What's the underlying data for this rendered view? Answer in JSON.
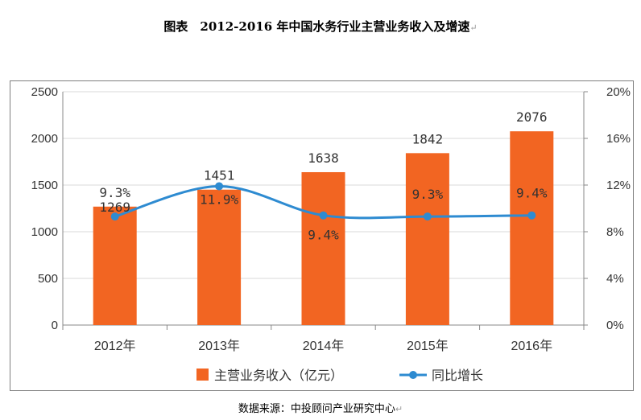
{
  "figure": {
    "title": "图表　2012-2016 年中国水务行业主营业务收入及增速",
    "source": "数据来源：中投顾问产业研究中心",
    "para_mark": "↵"
  },
  "colors": {
    "bar": "#f26522",
    "line": "#2e8bd1",
    "axis": "#888888",
    "grid": "#d9d9d9",
    "text": "#333333"
  },
  "chart_data": {
    "type": "bar",
    "categories": [
      "2012年",
      "2013年",
      "2014年",
      "2015年",
      "2016年"
    ],
    "series": [
      {
        "name": "主营业务收入（亿元）",
        "type": "bar",
        "axis": "left",
        "values": [
          1269,
          1451,
          1638,
          1842,
          2076
        ],
        "labels": [
          "1269",
          "1451",
          "1638",
          "1842",
          "2076"
        ]
      },
      {
        "name": "同比增长",
        "type": "line",
        "axis": "right",
        "values": [
          9.3,
          11.9,
          9.4,
          9.3,
          9.4
        ],
        "labels": [
          "9.3%",
          "11.9%",
          "9.4%",
          "9.3%",
          "9.4%"
        ]
      }
    ],
    "y_left": {
      "min": 0,
      "max": 2500,
      "ticks": [
        "0",
        "500",
        "1000",
        "1500",
        "2000",
        "2500"
      ]
    },
    "y_right": {
      "min": 0,
      "max": 20,
      "ticks": [
        "0%",
        "4%",
        "8%",
        "12%",
        "16%",
        "20%"
      ]
    },
    "grid": true,
    "legend": "bottom"
  }
}
